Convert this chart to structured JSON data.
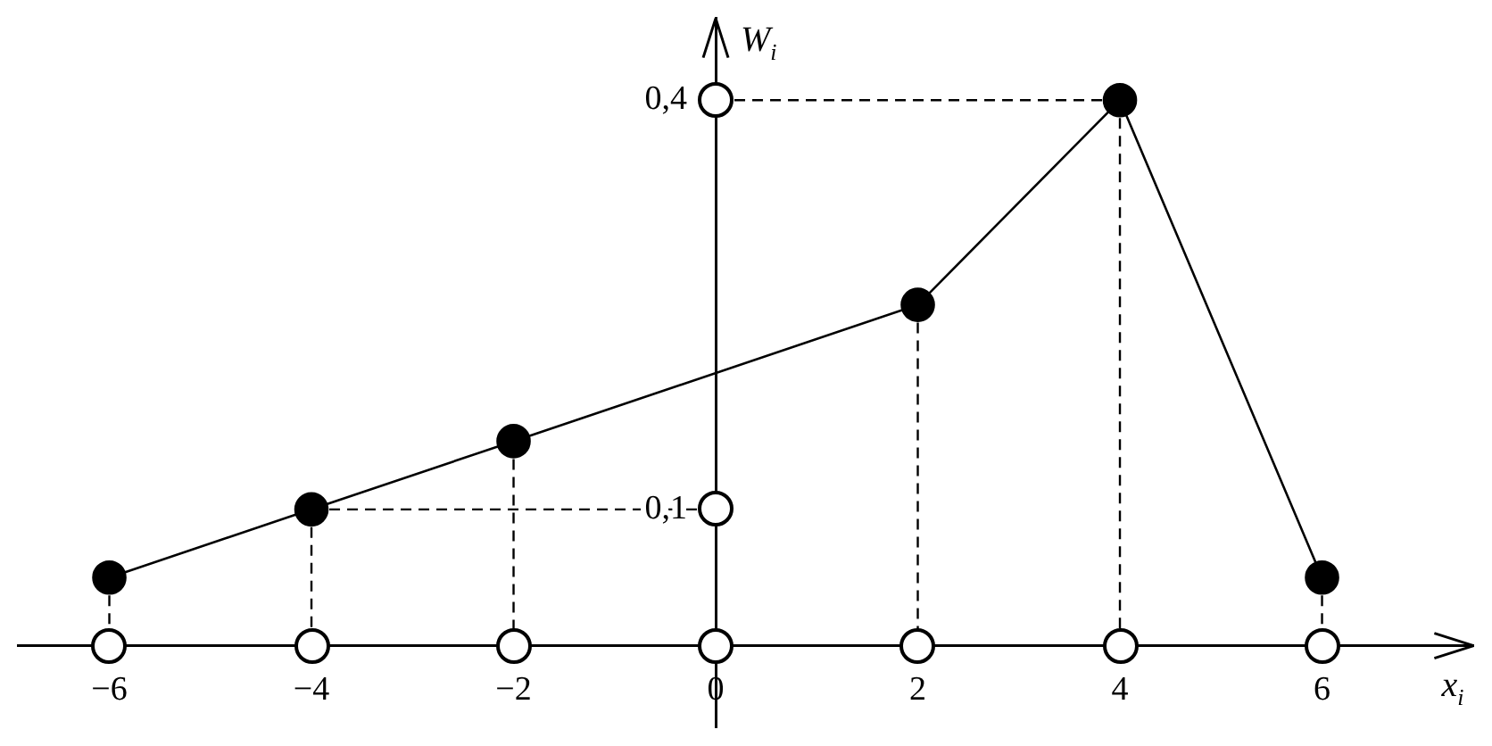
{
  "chart_data": {
    "type": "line",
    "xlabel": "x$_{i}$",
    "ylabel": "W$_{i}$",
    "x": [
      -6,
      -4,
      -2,
      2,
      4,
      6
    ],
    "values": [
      0.05,
      0.1,
      0.15,
      0.25,
      0.4,
      0.05
    ],
    "color": "#000000",
    "marker": "circle",
    "line_style": "solid",
    "xlim": [
      -6.9,
      7.5
    ],
    "ylim": [
      -0.06,
      0.46
    ],
    "xticks": [
      -6,
      -4,
      -2,
      0,
      2,
      4,
      6
    ],
    "yticks": [
      {
        "value": 0.1,
        "label": "0,1"
      },
      {
        "value": 0.4,
        "label": "0,4"
      }
    ]
  }
}
